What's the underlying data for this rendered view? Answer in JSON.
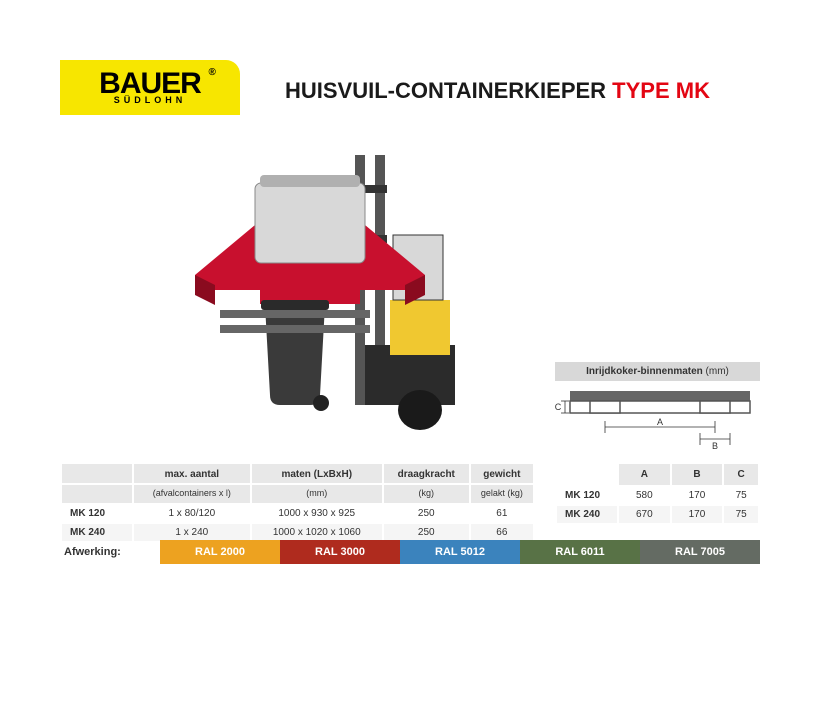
{
  "logo": {
    "brand": "BAUER",
    "sub": "SÜDLOHN"
  },
  "title": {
    "part1": "HUISVUIL-CONTAINERKIEPER ",
    "part2": "TYPE MK"
  },
  "title_style": {
    "fontsize": 22,
    "color_black": "#1a1a1a",
    "color_red": "#e30613"
  },
  "main_table": {
    "headers_top": [
      "",
      "max. aantal",
      "maten (LxBxH)",
      "draagkracht",
      "gewicht"
    ],
    "headers_sub": [
      "",
      "(afvalcontainers x l)",
      "(mm)",
      "(kg)",
      "gelakt (kg)"
    ],
    "rows": [
      [
        "MK 120",
        "1 x 80/120",
        "1000 x  930 x  925",
        "250",
        "61"
      ],
      [
        "MK 240",
        "1 x 240",
        "1000 x 1020 x 1060",
        "250",
        "66"
      ]
    ],
    "header_bg": "#e8e8e8",
    "alt_row_bg": "#f5f5f5",
    "fontsize_header": 10,
    "fontsize_sub": 9,
    "fontsize_body": 10
  },
  "dim_section": {
    "title_bold": "Inrijdkoker-binnenmaten",
    "title_unit": " (mm)",
    "diagram": {
      "outer_color": "#666666",
      "inner_color": "#ffffff",
      "label_A": "A",
      "label_B": "B",
      "label_C": "C"
    },
    "headers": [
      "",
      "A",
      "B",
      "C"
    ],
    "rows": [
      [
        "MK 120",
        "580",
        "170",
        "75"
      ],
      [
        "MK 240",
        "670",
        "170",
        "75"
      ]
    ]
  },
  "finish": {
    "label": "Afwerking:",
    "swatches": [
      {
        "name": "RAL 2000",
        "color": "#eda220"
      },
      {
        "name": "RAL 3000",
        "color": "#af2b1e"
      },
      {
        "name": "RAL 5012",
        "color": "#3b83bd"
      },
      {
        "name": "RAL 6011",
        "color": "#587246"
      },
      {
        "name": "RAL 7005",
        "color": "#646b63"
      }
    ]
  },
  "product": {
    "frame_color": "#c8102e",
    "bin_color": "#3a3a3a",
    "forklift_body": "#f0c830",
    "forklift_dark": "#2b2b2b",
    "mast_color": "#555555"
  }
}
